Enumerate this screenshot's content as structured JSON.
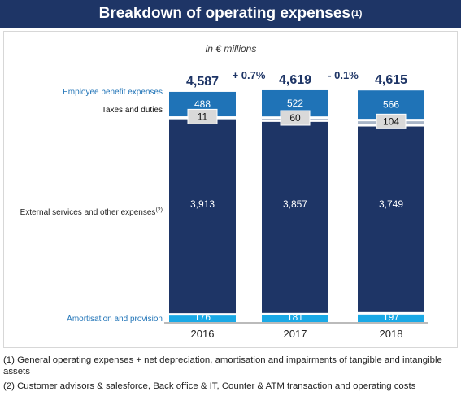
{
  "title": {
    "text": "Breakdown of operating expenses",
    "note_ref": "(1)"
  },
  "chart_data": {
    "type": "bar",
    "stacked": true,
    "subtitle": "in € millions",
    "categories": [
      "2016",
      "2017",
      "2018"
    ],
    "totals": [
      "4,587",
      "4,619",
      "4,615"
    ],
    "changes": [
      "+ 0.7%",
      "- 0.1%"
    ],
    "series": [
      {
        "name": "Amortisation and provision",
        "values": [
          176,
          181,
          197
        ],
        "labels": [
          "176",
          "181",
          "197"
        ],
        "color": "#1aa9e6",
        "label_style": "box-white"
      },
      {
        "name": "External services and other expenses",
        "note_ref": "(2)",
        "values": [
          3913,
          3857,
          3749
        ],
        "labels": [
          "3,913",
          "3,857",
          "3,749"
        ],
        "color": "#1e3566",
        "label_style": "text-white"
      },
      {
        "name": "Taxes and duties",
        "values": [
          11,
          60,
          104
        ],
        "labels": [
          "11",
          "60",
          "104"
        ],
        "color": "#a9b6c8",
        "label_style": "box-grey"
      },
      {
        "name": "Employee benefit expenses",
        "values": [
          488,
          522,
          566
        ],
        "labels": [
          "488",
          "522",
          "566"
        ],
        "color": "#1f73b7",
        "label_style": "text-white"
      }
    ],
    "colors": {
      "total_text": "#1e3566",
      "change_text": "#1e3566",
      "legend_blue": "#1f73b7",
      "axis": "#777777"
    }
  },
  "footnotes": [
    "(1) General operating expenses + net depreciation, amortisation and impairments of tangible and intangible assets",
    "(2) Customer advisors & salesforce, Back office & IT, Counter & ATM transaction and operating costs"
  ]
}
